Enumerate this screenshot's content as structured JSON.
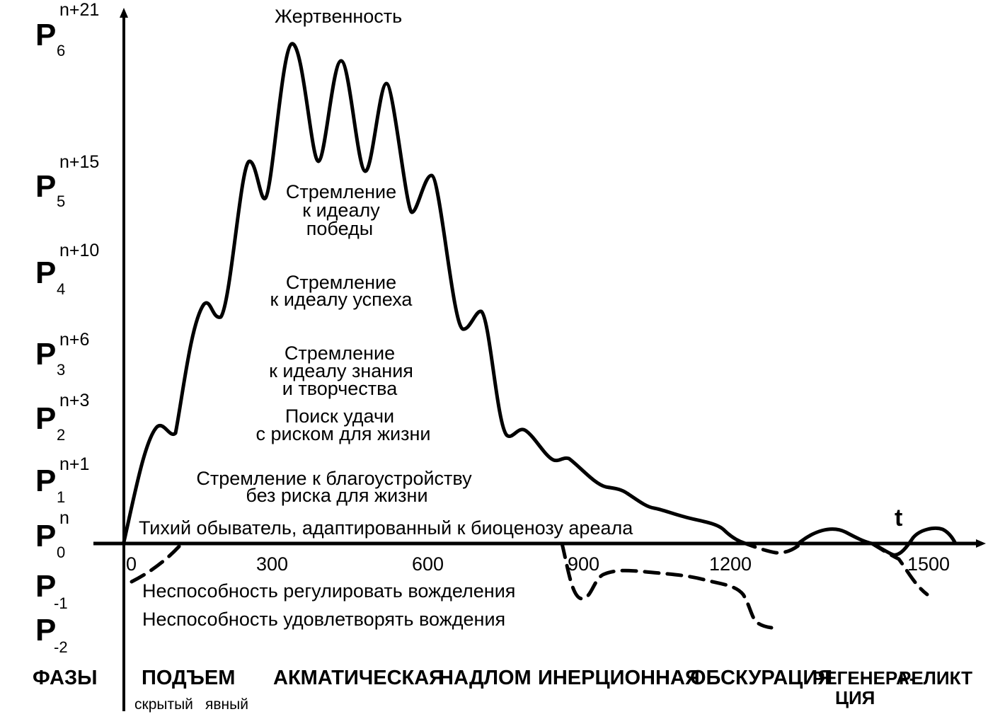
{
  "levels": [
    {
      "main": "P",
      "sub": "6",
      "sup": "n+21"
    },
    {
      "main": "P",
      "sub": "5",
      "sup": "n+15"
    },
    {
      "main": "P",
      "sub": "4",
      "sup": "n+10"
    },
    {
      "main": "P",
      "sub": "3",
      "sup": "n+6"
    },
    {
      "main": "P",
      "sub": "2",
      "sup": "n+3"
    },
    {
      "main": "P",
      "sub": "1",
      "sup": "n+1"
    },
    {
      "main": "P",
      "sub": "0",
      "sup": "n"
    },
    {
      "main": "P",
      "sub": "-1",
      "sup": ""
    },
    {
      "main": "P",
      "sub": "-2",
      "sup": ""
    }
  ],
  "descriptions": {
    "sacrifice": "Жертвенность",
    "victory": [
      "Стремление",
      "к идеалу",
      "победы"
    ],
    "success": [
      "Стремление",
      "к идеалу успеха"
    ],
    "knowledge": [
      "Стремление",
      "к идеалу знания",
      "и творчества"
    ],
    "luck": [
      "Поиск удачи",
      "с риском для жизни"
    ],
    "comfort": [
      "Стремление к благоустройству",
      "без риска для жизни"
    ],
    "philistine": "Тихий обыватель, адаптированный к биоценозу ареала",
    "cannot_regulate": "Неспособность регулировать вожделения",
    "cannot_satisfy": "Неспособность удовлетворять вождения"
  },
  "axis": {
    "t_label": "t",
    "ticks": [
      "0",
      "300",
      "600",
      "900",
      "1200",
      "1500"
    ]
  },
  "phases": {
    "header": "ФАЗЫ",
    "items": [
      "ПОДЪЕМ",
      "АКМАТИЧЕСКАЯ",
      "НАДЛОМ",
      "ИНЕРЦИОННАЯ",
      "ОБСКУРАЦИЯ",
      "РЕГЕНЕРА-",
      "ЦИЯ",
      "РЕЛИКТ"
    ],
    "rise_sub": [
      "скрытый",
      "явный"
    ]
  }
}
